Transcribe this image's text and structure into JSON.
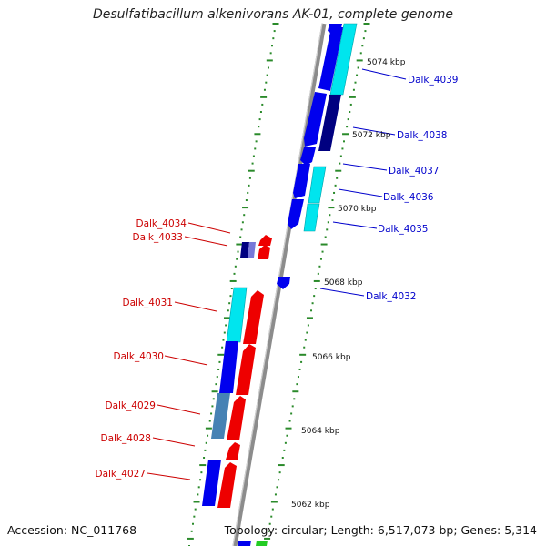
{
  "title": "Desulfatibacillum alkenivorans AK-01, complete genome",
  "footer": {
    "accession": "Accession: NC_011768",
    "topology": "Topology: circular; Length: 6,517,073 bp; Genes: 5,314"
  },
  "colors": {
    "backbone": "#8a8a8a",
    "tick": "#2a8a2a",
    "plus_label": "#0000cc",
    "minus_label": "#cc0000",
    "blue": "#0000ee",
    "cyan": "#00e5ee",
    "navy": "#000080",
    "red": "#ee0000",
    "steel": "#4682b4"
  },
  "scale_labels": [
    "5074 kbp",
    "5072 kbp",
    "5070 kbp",
    "5068 kbp",
    "5066 kbp",
    "5064 kbp",
    "5062 kbp"
  ],
  "genes": {
    "plus": [
      "Dalk_4039",
      "Dalk_4038",
      "Dalk_4037",
      "Dalk_4036",
      "Dalk_4035",
      "Dalk_4032"
    ],
    "minus": [
      "Dalk_4034",
      "Dalk_4033",
      "Dalk_4031",
      "Dalk_4030",
      "Dalk_4029",
      "Dalk_4028",
      "Dalk_4027"
    ]
  }
}
